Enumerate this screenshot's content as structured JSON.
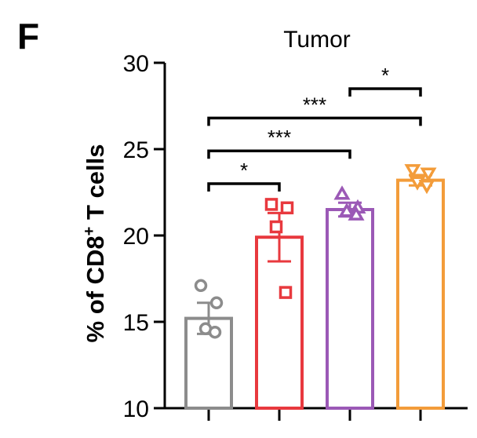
{
  "panel_label": "F",
  "chart_data": {
    "type": "bar",
    "title": "Tumor",
    "ylabel_main": "% of CD8",
    "ylabel_sup": "+",
    "ylabel_rest": " T cells",
    "xlabel": "",
    "ylim": [
      10,
      30
    ],
    "yticks": [
      "10",
      "15",
      "20",
      "25",
      "30"
    ],
    "series": [
      {
        "color": "#8c8c8c",
        "marker": "circle",
        "mean": 15.2,
        "sem": 0.9,
        "points": [
          17.1,
          16.1,
          14.6,
          14.4
        ]
      },
      {
        "color": "#e8393e",
        "marker": "square",
        "mean": 19.9,
        "sem": 1.4,
        "points": [
          21.8,
          21.6,
          20.5,
          16.7
        ]
      },
      {
        "color": "#9b59b6",
        "marker": "triangle-up",
        "mean": 21.5,
        "sem": 0.4,
        "points": [
          22.4,
          21.6,
          21.4,
          21.2
        ]
      },
      {
        "color": "#f39c3a",
        "marker": "triangle-down",
        "mean": 23.2,
        "sem": 0.3,
        "points": [
          23.8,
          23.6,
          23.1,
          22.9
        ]
      }
    ],
    "significance": [
      {
        "from": 0,
        "to": 1,
        "label": "*",
        "y": 23.0
      },
      {
        "from": 0,
        "to": 2,
        "label": "***",
        "y": 24.9
      },
      {
        "from": 0,
        "to": 3,
        "label": "***",
        "y": 26.8
      },
      {
        "from": 2,
        "to": 3,
        "label": "*",
        "y": 28.5
      }
    ]
  }
}
